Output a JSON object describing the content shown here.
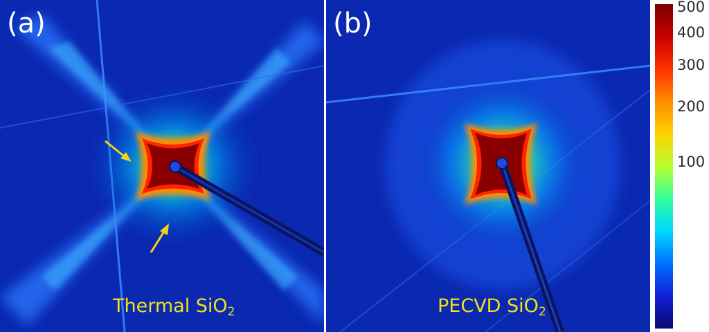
{
  "panels": [
    {
      "letter": "(a)",
      "label_main": "Thermal SiO",
      "label_sub": "2"
    },
    {
      "letter": "(b)",
      "label_main": "PECVD  SiO",
      "label_sub": "2"
    }
  ],
  "colorbar": {
    "ticks": [
      "500",
      "400",
      "300",
      "200",
      "100"
    ],
    "colors": [
      "#7a0000",
      "#c80000",
      "#ff3000",
      "#ff8c00",
      "#ffd200",
      "#b8ff30",
      "#30ff9a",
      "#00d8ff",
      "#0070ff",
      "#1020d8",
      "#0a0a70"
    ]
  },
  "arrow_color": "#f2d21e",
  "background_color": "#0a28b0"
}
